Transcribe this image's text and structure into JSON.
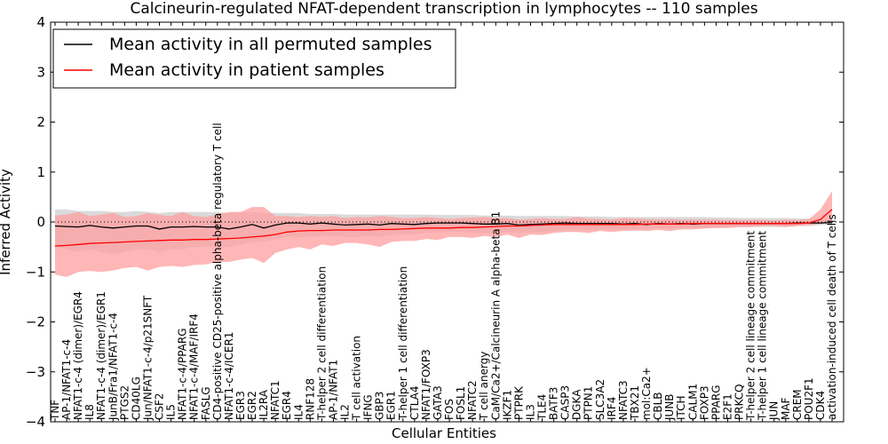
{
  "chart_data": {
    "type": "line",
    "title": "Calcineurin-regulated NFAT-dependent transcription in lymphocytes -- 110 samples",
    "xlabel": "Cellular Entities",
    "ylabel": "Inferred Activity",
    "ylim": [
      -4,
      4
    ],
    "yticks": [
      -4,
      -3,
      -2,
      -1,
      0,
      1,
      2,
      3,
      4
    ],
    "ytick_labels": [
      "−4",
      "−3",
      "−2",
      "−1",
      "0",
      "1",
      "2",
      "3",
      "4"
    ],
    "legend": {
      "placement": "top-left"
    },
    "reference_line": {
      "y": 0,
      "style": "dotted"
    },
    "categories": [
      "TNF",
      "AP-1/NFAT1-c-4",
      "NFAT1-c-4 (dimer)/EGR4",
      "IL8",
      "NFAT1-c-4 (dimer)/EGR1",
      "JunB/Fra1/NFAT1-c-4",
      "PTGS2",
      "CD40LG",
      "Jun/NFAT1-c-4/p21SNFT",
      "CSF2",
      "IL5",
      "NFAT1-c-4/PPARG",
      "NFAT1-c-4/MAF/IRF4",
      "FASLG",
      "CD4-positive CD25-positive alpha-beta regulatory T cell",
      "NFAT1-c-4/ICER1",
      "EGR3",
      "EGR2",
      "IL2RA",
      "NFATC1",
      "EGR4",
      "IL4",
      "RNF128",
      "T-helper 2 cell differentiation",
      "AP-1/NFAT1",
      "IL2",
      "T cell activation",
      "IFNG",
      "GBP3",
      "EGR1",
      "T-helper 1 cell differentiation",
      "CTLA4",
      "NFAT1/FOXP3",
      "GATA3",
      "FOS",
      "FOSL1",
      "NFATC2",
      "T cell anergy",
      "CaM/Ca2+/Calcineurin A alpha-beta B1",
      "IKZF1",
      "PTPRK",
      "IL3",
      "TLE4",
      "BATF3",
      "CASP3",
      "DGKA",
      "PTPN1",
      "SLC3A2",
      "IRF4",
      "NFATC3",
      "TBX21",
      "mol:Ca2+",
      "CBLB",
      "JUNB",
      "ITCH",
      "CALM1",
      "FOXP3",
      "PPARG",
      "E2F1",
      "PRKCQ",
      "T-helper 2 cell lineage commitment",
      "T-helper 1 cell lineage commitment",
      "JUN",
      "MAF",
      "CREM",
      "POU2F1",
      "CDK4",
      "activation-induced cell death of T cells"
    ],
    "series": [
      {
        "name": "Mean activity in all permuted samples",
        "color": "#000000",
        "band_color": "#bbbbbb",
        "values": [
          -0.08,
          -0.09,
          -0.1,
          -0.07,
          -0.1,
          -0.12,
          -0.1,
          -0.08,
          -0.08,
          -0.14,
          -0.1,
          -0.1,
          -0.09,
          -0.1,
          -0.1,
          -0.14,
          -0.1,
          -0.05,
          -0.12,
          -0.06,
          -0.02,
          -0.02,
          -0.04,
          -0.02,
          -0.04,
          -0.06,
          -0.05,
          -0.04,
          -0.06,
          -0.03,
          -0.04,
          -0.05,
          -0.03,
          -0.02,
          -0.02,
          -0.02,
          -0.03,
          -0.04,
          -0.04,
          -0.03,
          -0.06,
          -0.05,
          -0.04,
          -0.03,
          -0.02,
          -0.03,
          -0.03,
          -0.03,
          -0.03,
          -0.04,
          -0.03,
          -0.05,
          -0.03,
          -0.04,
          -0.03,
          -0.04,
          -0.03,
          -0.03,
          -0.03,
          -0.03,
          -0.03,
          -0.03,
          -0.03,
          -0.03,
          -0.02,
          -0.02,
          -0.02,
          -0.01
        ],
        "lower": [
          -0.5,
          -0.55,
          -0.6,
          -0.55,
          -0.6,
          -0.65,
          -0.6,
          -0.55,
          -0.55,
          -0.6,
          -0.55,
          -0.55,
          -0.5,
          -0.5,
          -0.5,
          -0.5,
          -0.45,
          -0.4,
          -0.4,
          -0.35,
          -0.3,
          -0.3,
          -0.3,
          -0.28,
          -0.28,
          -0.3,
          -0.3,
          -0.28,
          -0.3,
          -0.25,
          -0.25,
          -0.25,
          -0.22,
          -0.22,
          -0.2,
          -0.2,
          -0.22,
          -0.22,
          -0.22,
          -0.2,
          -0.22,
          -0.2,
          -0.2,
          -0.18,
          -0.16,
          -0.16,
          -0.16,
          -0.15,
          -0.15,
          -0.15,
          -0.14,
          -0.14,
          -0.13,
          -0.13,
          -0.12,
          -0.12,
          -0.12,
          -0.11,
          -0.1,
          -0.1,
          -0.1,
          -0.1,
          -0.1,
          -0.1,
          -0.08,
          -0.08,
          -0.06,
          -0.05
        ],
        "upper": [
          0.25,
          0.25,
          0.22,
          0.22,
          0.22,
          0.2,
          0.2,
          0.22,
          0.2,
          0.18,
          0.2,
          0.2,
          0.2,
          0.2,
          0.2,
          0.18,
          0.2,
          0.2,
          0.18,
          0.18,
          0.18,
          0.18,
          0.16,
          0.16,
          0.16,
          0.15,
          0.15,
          0.15,
          0.15,
          0.15,
          0.15,
          0.15,
          0.15,
          0.14,
          0.14,
          0.14,
          0.14,
          0.13,
          0.13,
          0.13,
          0.12,
          0.12,
          0.12,
          0.12,
          0.12,
          0.11,
          0.11,
          0.11,
          0.1,
          0.1,
          0.1,
          0.1,
          0.1,
          0.1,
          0.1,
          0.1,
          0.1,
          0.09,
          0.09,
          0.08,
          0.08,
          0.08,
          0.08,
          0.08,
          0.07,
          0.07,
          0.06,
          0.05
        ]
      },
      {
        "name": "Mean activity in patient samples",
        "color": "#ff0000",
        "band_color": "#ff9e9e",
        "values": [
          -0.48,
          -0.47,
          -0.45,
          -0.43,
          -0.42,
          -0.41,
          -0.4,
          -0.39,
          -0.38,
          -0.37,
          -0.36,
          -0.36,
          -0.35,
          -0.35,
          -0.34,
          -0.33,
          -0.32,
          -0.3,
          -0.28,
          -0.25,
          -0.2,
          -0.18,
          -0.17,
          -0.17,
          -0.16,
          -0.16,
          -0.16,
          -0.16,
          -0.15,
          -0.15,
          -0.14,
          -0.13,
          -0.12,
          -0.12,
          -0.12,
          -0.11,
          -0.11,
          -0.1,
          -0.09,
          -0.08,
          -0.08,
          -0.07,
          -0.06,
          -0.05,
          -0.05,
          -0.05,
          -0.05,
          -0.05,
          -0.05,
          -0.05,
          -0.05,
          -0.04,
          -0.04,
          -0.04,
          -0.04,
          -0.03,
          -0.03,
          -0.03,
          -0.03,
          -0.03,
          -0.03,
          -0.03,
          -0.03,
          -0.03,
          -0.03,
          -0.02,
          0.05,
          0.25
        ],
        "lower": [
          -1.05,
          -1.1,
          -1.0,
          -0.98,
          -1.0,
          -0.97,
          -0.92,
          -0.9,
          -0.97,
          -0.9,
          -0.88,
          -0.9,
          -0.86,
          -0.85,
          -0.8,
          -0.8,
          -0.75,
          -0.72,
          -0.82,
          -0.62,
          -0.55,
          -0.5,
          -0.55,
          -0.45,
          -0.48,
          -0.42,
          -0.42,
          -0.45,
          -0.5,
          -0.4,
          -0.38,
          -0.38,
          -0.34,
          -0.36,
          -0.3,
          -0.3,
          -0.32,
          -0.28,
          -0.3,
          -0.25,
          -0.32,
          -0.25,
          -0.26,
          -0.22,
          -0.2,
          -0.2,
          -0.22,
          -0.18,
          -0.2,
          -0.18,
          -0.17,
          -0.18,
          -0.16,
          -0.18,
          -0.15,
          -0.15,
          -0.13,
          -0.12,
          -0.12,
          -0.1,
          -0.1,
          -0.08,
          -0.08,
          -0.1,
          -0.08,
          -0.06,
          -0.04,
          0.0
        ],
        "upper": [
          0.13,
          0.15,
          0.2,
          0.12,
          0.15,
          0.18,
          0.1,
          0.12,
          0.18,
          0.14,
          0.12,
          0.2,
          0.12,
          0.1,
          0.15,
          0.2,
          0.2,
          0.3,
          0.3,
          0.12,
          0.12,
          0.1,
          0.12,
          0.1,
          0.12,
          0.08,
          0.1,
          0.09,
          0.12,
          0.1,
          0.08,
          0.08,
          0.1,
          0.08,
          0.06,
          0.08,
          0.09,
          0.1,
          0.08,
          0.08,
          0.05,
          0.06,
          0.08,
          0.06,
          0.06,
          0.1,
          0.07,
          0.06,
          0.05,
          0.08,
          0.07,
          0.06,
          0.05,
          0.06,
          0.05,
          0.05,
          0.05,
          0.05,
          0.04,
          0.04,
          0.04,
          0.04,
          0.03,
          0.05,
          0.04,
          0.06,
          0.25,
          0.62
        ]
      }
    ]
  }
}
